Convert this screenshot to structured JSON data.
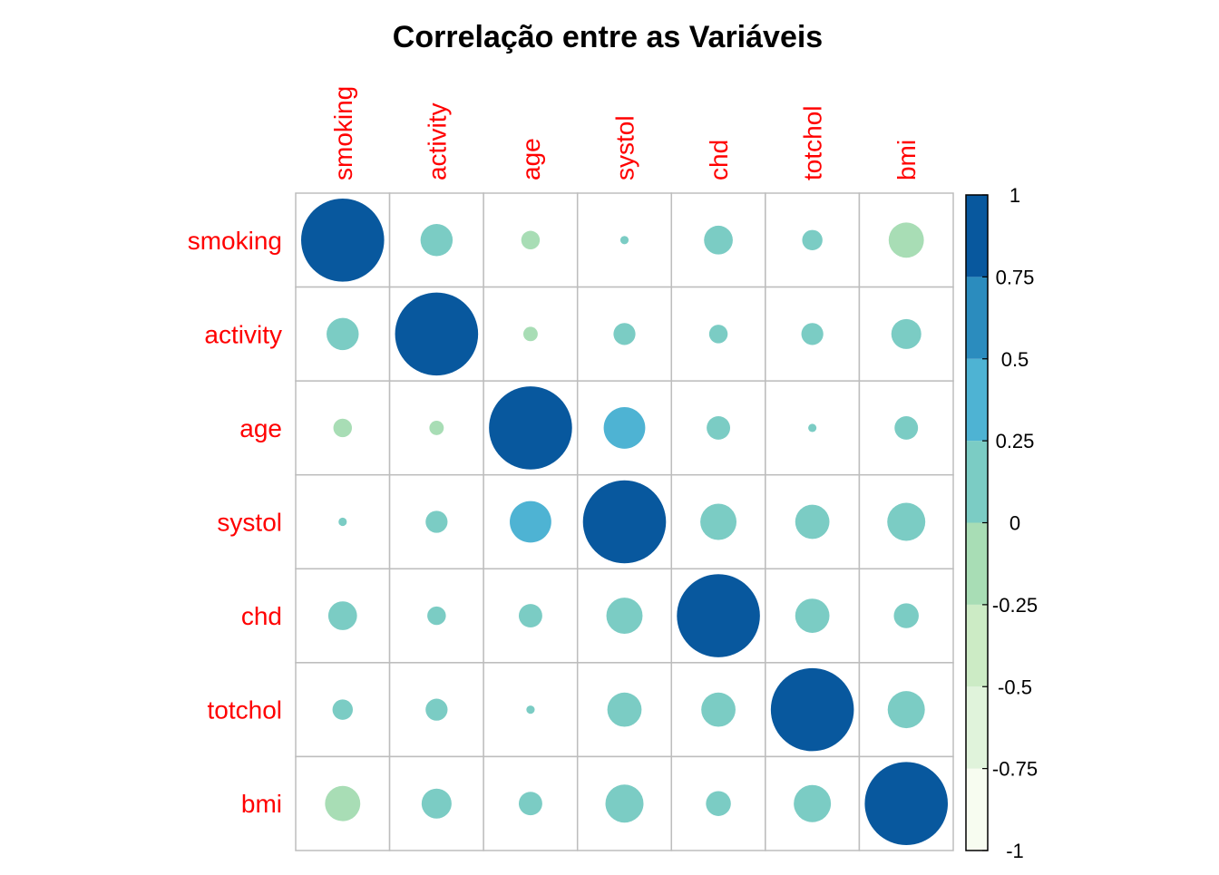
{
  "chart_data": {
    "type": "correlation-matrix",
    "title": "Correlação entre as Variáveis",
    "variables": [
      "smoking",
      "activity",
      "age",
      "systol",
      "chd",
      "totchol",
      "bmi"
    ],
    "matrix": [
      [
        1.0,
        0.15,
        -0.05,
        0.01,
        0.12,
        0.06,
        -0.18
      ],
      [
        0.15,
        1.0,
        -0.03,
        0.07,
        0.05,
        0.07,
        0.13
      ],
      [
        -0.05,
        -0.03,
        1.0,
        0.25,
        0.08,
        0.01,
        0.08
      ],
      [
        0.01,
        0.07,
        0.25,
        1.0,
        0.19,
        0.17,
        0.21
      ],
      [
        0.12,
        0.05,
        0.08,
        0.19,
        1.0,
        0.17,
        0.09
      ],
      [
        0.06,
        0.07,
        0.01,
        0.17,
        0.17,
        1.0,
        0.2
      ],
      [
        -0.18,
        0.13,
        0.08,
        0.21,
        0.09,
        0.2,
        1.0
      ]
    ],
    "colorbar": {
      "range": [
        -1,
        1
      ],
      "tick_labels": [
        "1",
        "0.75",
        "0.5",
        "0.25",
        "0",
        "-0.25",
        "-0.5",
        "-0.75",
        "-1"
      ],
      "tick_values": [
        1,
        0.75,
        0.5,
        0.25,
        0,
        -0.25,
        -0.5,
        -0.75,
        -1
      ],
      "bins": [
        {
          "from": -1.0,
          "to": -0.75,
          "color": "#f7fcf0"
        },
        {
          "from": -0.75,
          "to": -0.5,
          "color": "#e0f3db"
        },
        {
          "from": -0.5,
          "to": -0.25,
          "color": "#ccebc5"
        },
        {
          "from": -0.25,
          "to": 0.0,
          "color": "#a8ddb5"
        },
        {
          "from": 0.0,
          "to": 0.25,
          "color": "#7bccc4"
        },
        {
          "from": 0.25,
          "to": 0.5,
          "color": "#4eb3d3"
        },
        {
          "from": 0.5,
          "to": 0.75,
          "color": "#2b8cbe"
        },
        {
          "from": 0.75,
          "to": 1.0,
          "color": "#08589e"
        }
      ]
    },
    "label_color": "#ff0000",
    "grid_color": "#bdbdbd"
  }
}
